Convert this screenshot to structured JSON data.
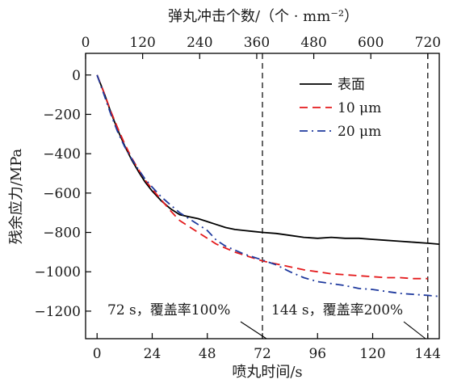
{
  "chart_data": {
    "type": "line",
    "top_axis": {
      "label": "弹丸冲击个数/（个 · mm⁻²）",
      "ticks": [
        "0",
        "120",
        "240",
        "360",
        "480",
        "600",
        "720"
      ],
      "range": [
        0,
        744
      ]
    },
    "xlabel": "喷丸时间/s",
    "ylabel": "残余应力/MPa",
    "xlim": [
      -5,
      149
    ],
    "ylim": [
      -1340,
      110
    ],
    "xticks": [
      0,
      24,
      48,
      72,
      96,
      120,
      144
    ],
    "yticks": [
      0,
      -200,
      -400,
      -600,
      -800,
      -1000,
      -1200
    ],
    "x_tick_labels": [
      "0",
      "24",
      "48",
      "72",
      "96",
      "120",
      "144"
    ],
    "y_tick_labels": [
      "0",
      "−200",
      "−400",
      "−600",
      "−800",
      "−1000",
      "−1200"
    ],
    "grid": false,
    "legend": "top-right",
    "vertical_markers": [
      72,
      144
    ],
    "series": [
      {
        "name": "表面",
        "color": "#000000",
        "dash": "solid",
        "x": [
          0,
          3,
          6,
          9,
          12,
          15,
          18,
          21,
          24,
          28,
          32,
          36,
          40,
          44,
          48,
          52,
          56,
          60,
          64,
          68,
          72,
          78,
          84,
          90,
          96,
          102,
          108,
          114,
          120,
          126,
          132,
          138,
          144,
          149
        ],
        "y": [
          0,
          -90,
          -190,
          -280,
          -360,
          -430,
          -490,
          -545,
          -590,
          -640,
          -680,
          -710,
          -720,
          -730,
          -745,
          -760,
          -775,
          -785,
          -790,
          -795,
          -800,
          -805,
          -815,
          -825,
          -830,
          -825,
          -830,
          -830,
          -835,
          -840,
          -845,
          -850,
          -855,
          -860
        ]
      },
      {
        "name": "10 μm",
        "color": "#e41a1c",
        "dash": "dash",
        "x": [
          0,
          3,
          6,
          9,
          12,
          15,
          18,
          21,
          24,
          28,
          32,
          36,
          40,
          44,
          48,
          52,
          56,
          60,
          64,
          68,
          72,
          78,
          84,
          90,
          96,
          102,
          108,
          114,
          120,
          126,
          132,
          138,
          144
        ],
        "y": [
          0,
          -90,
          -185,
          -270,
          -350,
          -420,
          -480,
          -535,
          -580,
          -635,
          -690,
          -740,
          -770,
          -800,
          -830,
          -860,
          -880,
          -900,
          -915,
          -930,
          -945,
          -960,
          -975,
          -990,
          -1000,
          -1010,
          -1015,
          -1020,
          -1025,
          -1030,
          -1030,
          -1035,
          -1035
        ]
      },
      {
        "name": "20 μm",
        "color": "#1f3a9e",
        "dash": "dashdot",
        "x": [
          0,
          3,
          6,
          9,
          12,
          15,
          18,
          21,
          24,
          28,
          32,
          36,
          40,
          44,
          48,
          52,
          56,
          60,
          64,
          68,
          72,
          78,
          84,
          90,
          96,
          102,
          108,
          114,
          120,
          126,
          132,
          138,
          144,
          149
        ],
        "y": [
          0,
          -100,
          -200,
          -290,
          -365,
          -425,
          -480,
          -530,
          -570,
          -620,
          -660,
          -700,
          -730,
          -760,
          -790,
          -840,
          -870,
          -890,
          -910,
          -925,
          -940,
          -965,
          -1000,
          -1030,
          -1050,
          -1060,
          -1070,
          -1085,
          -1090,
          -1100,
          -1110,
          -1115,
          -1120,
          -1125
        ]
      }
    ],
    "annotations": [
      {
        "text": "72 s，覆盖率100%",
        "x": 72
      },
      {
        "text": "144 s，覆盖率200%",
        "x": 144
      }
    ]
  }
}
